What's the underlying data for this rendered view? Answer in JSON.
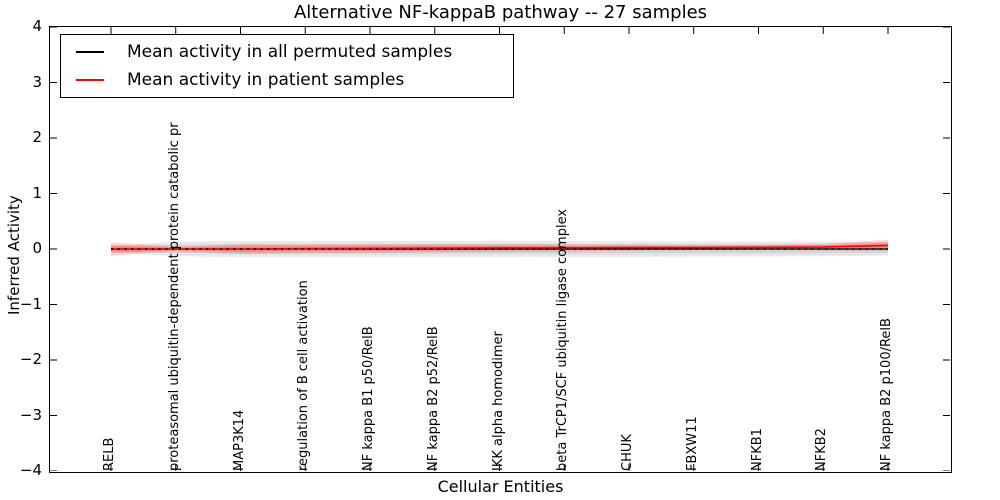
{
  "title": "Alternative NF-kappaB pathway -- 27 samples",
  "axes": {
    "xlabel": "Cellular Entities",
    "ylabel": "Inferred Activity",
    "ytick_labels": [
      "4",
      "3",
      "2",
      "1",
      "0",
      "−1",
      "−2",
      "−3",
      "−4"
    ]
  },
  "legend": {
    "items": [
      {
        "label": "Mean activity in all permuted samples",
        "color": "#000000"
      },
      {
        "label": "Mean activity in patient samples",
        "color": "#ff0000"
      }
    ]
  },
  "chart_data": {
    "type": "line",
    "title": "Alternative NF-kappaB pathway -- 27 samples",
    "xlabel": "Cellular Entities",
    "ylabel": "Inferred Activity",
    "ylim": [
      -4,
      4
    ],
    "grid": false,
    "legend_position": "upper left",
    "categories": [
      "RELB",
      "proteasomal ubiquitin-dependent protein catabolic pr",
      "MAP3K14",
      "regulation of B cell activation",
      "NF kappa B1 p50/RelB",
      "NF kappa B2 p52/RelB",
      "IKK alpha homodimer",
      "beta TrCP1/SCF ubiquitin ligase complex",
      "CHUK",
      "FBXW11",
      "NFKB1",
      "NFKB2",
      "NF kappa B2 p100/RelB"
    ],
    "series": [
      {
        "name": "Mean activity in all permuted samples",
        "color": "#000000",
        "style": "solid, with dashed overlay",
        "values": [
          0,
          0,
          0,
          0,
          0,
          0,
          0,
          0,
          0,
          0,
          0,
          0,
          0
        ]
      },
      {
        "name": "Mean activity in patient samples",
        "color": "#ff0000",
        "style": "solid",
        "values": [
          0,
          0,
          0,
          0.005,
          0.01,
          0.015,
          0.02,
          0.02,
          0.025,
          0.025,
          0.03,
          0.035,
          0.065
        ]
      }
    ],
    "bands": [
      {
        "name": "permuted samples spread",
        "color": "rgba(0,0,0,0.09)",
        "inner_color": "rgba(0,0,0,0.08)",
        "inner_scale": 0.6,
        "center": [
          0,
          0,
          0,
          0,
          0,
          0,
          0,
          0,
          0,
          0,
          0,
          0,
          0
        ],
        "half": [
          0.06,
          0.13,
          0.145,
          0.145,
          0.145,
          0.145,
          0.145,
          0.14,
          0.14,
          0.135,
          0.135,
          0.13,
          0.12
        ]
      },
      {
        "name": "patient samples spread",
        "color": "rgba(255,0,0,0.16)",
        "inner_color": "rgba(255,0,0,0.22)",
        "inner_scale": 0.55,
        "center": [
          0,
          0,
          0,
          0.005,
          0.01,
          0.015,
          0.02,
          0.02,
          0.025,
          0.025,
          0.03,
          0.035,
          0.065
        ],
        "half": [
          0.125,
          0.04,
          0.09,
          0.08,
          0.08,
          0.075,
          0.07,
          0.065,
          0.055,
          0.05,
          0.05,
          0.06,
          0.1
        ]
      }
    ],
    "overlay_dashed_line": {
      "color": "#000000",
      "at": 0
    }
  }
}
